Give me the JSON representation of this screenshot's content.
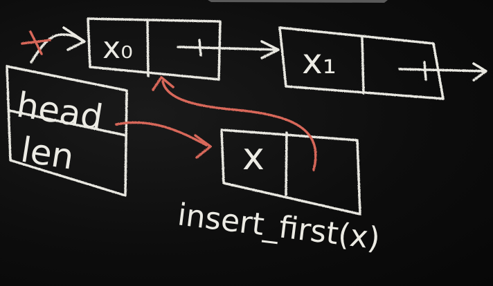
{
  "colors": {
    "chalk_white": "#e9e8e1",
    "chalk_red": "#d9685a",
    "board": "#0b0b0b"
  },
  "list_nodes": [
    {
      "value": "x₀"
    },
    {
      "value": "x₁"
    }
  ],
  "new_node": {
    "value": "x"
  },
  "header": {
    "fields": [
      "head",
      "len"
    ]
  },
  "caption": "insert_first(x)"
}
